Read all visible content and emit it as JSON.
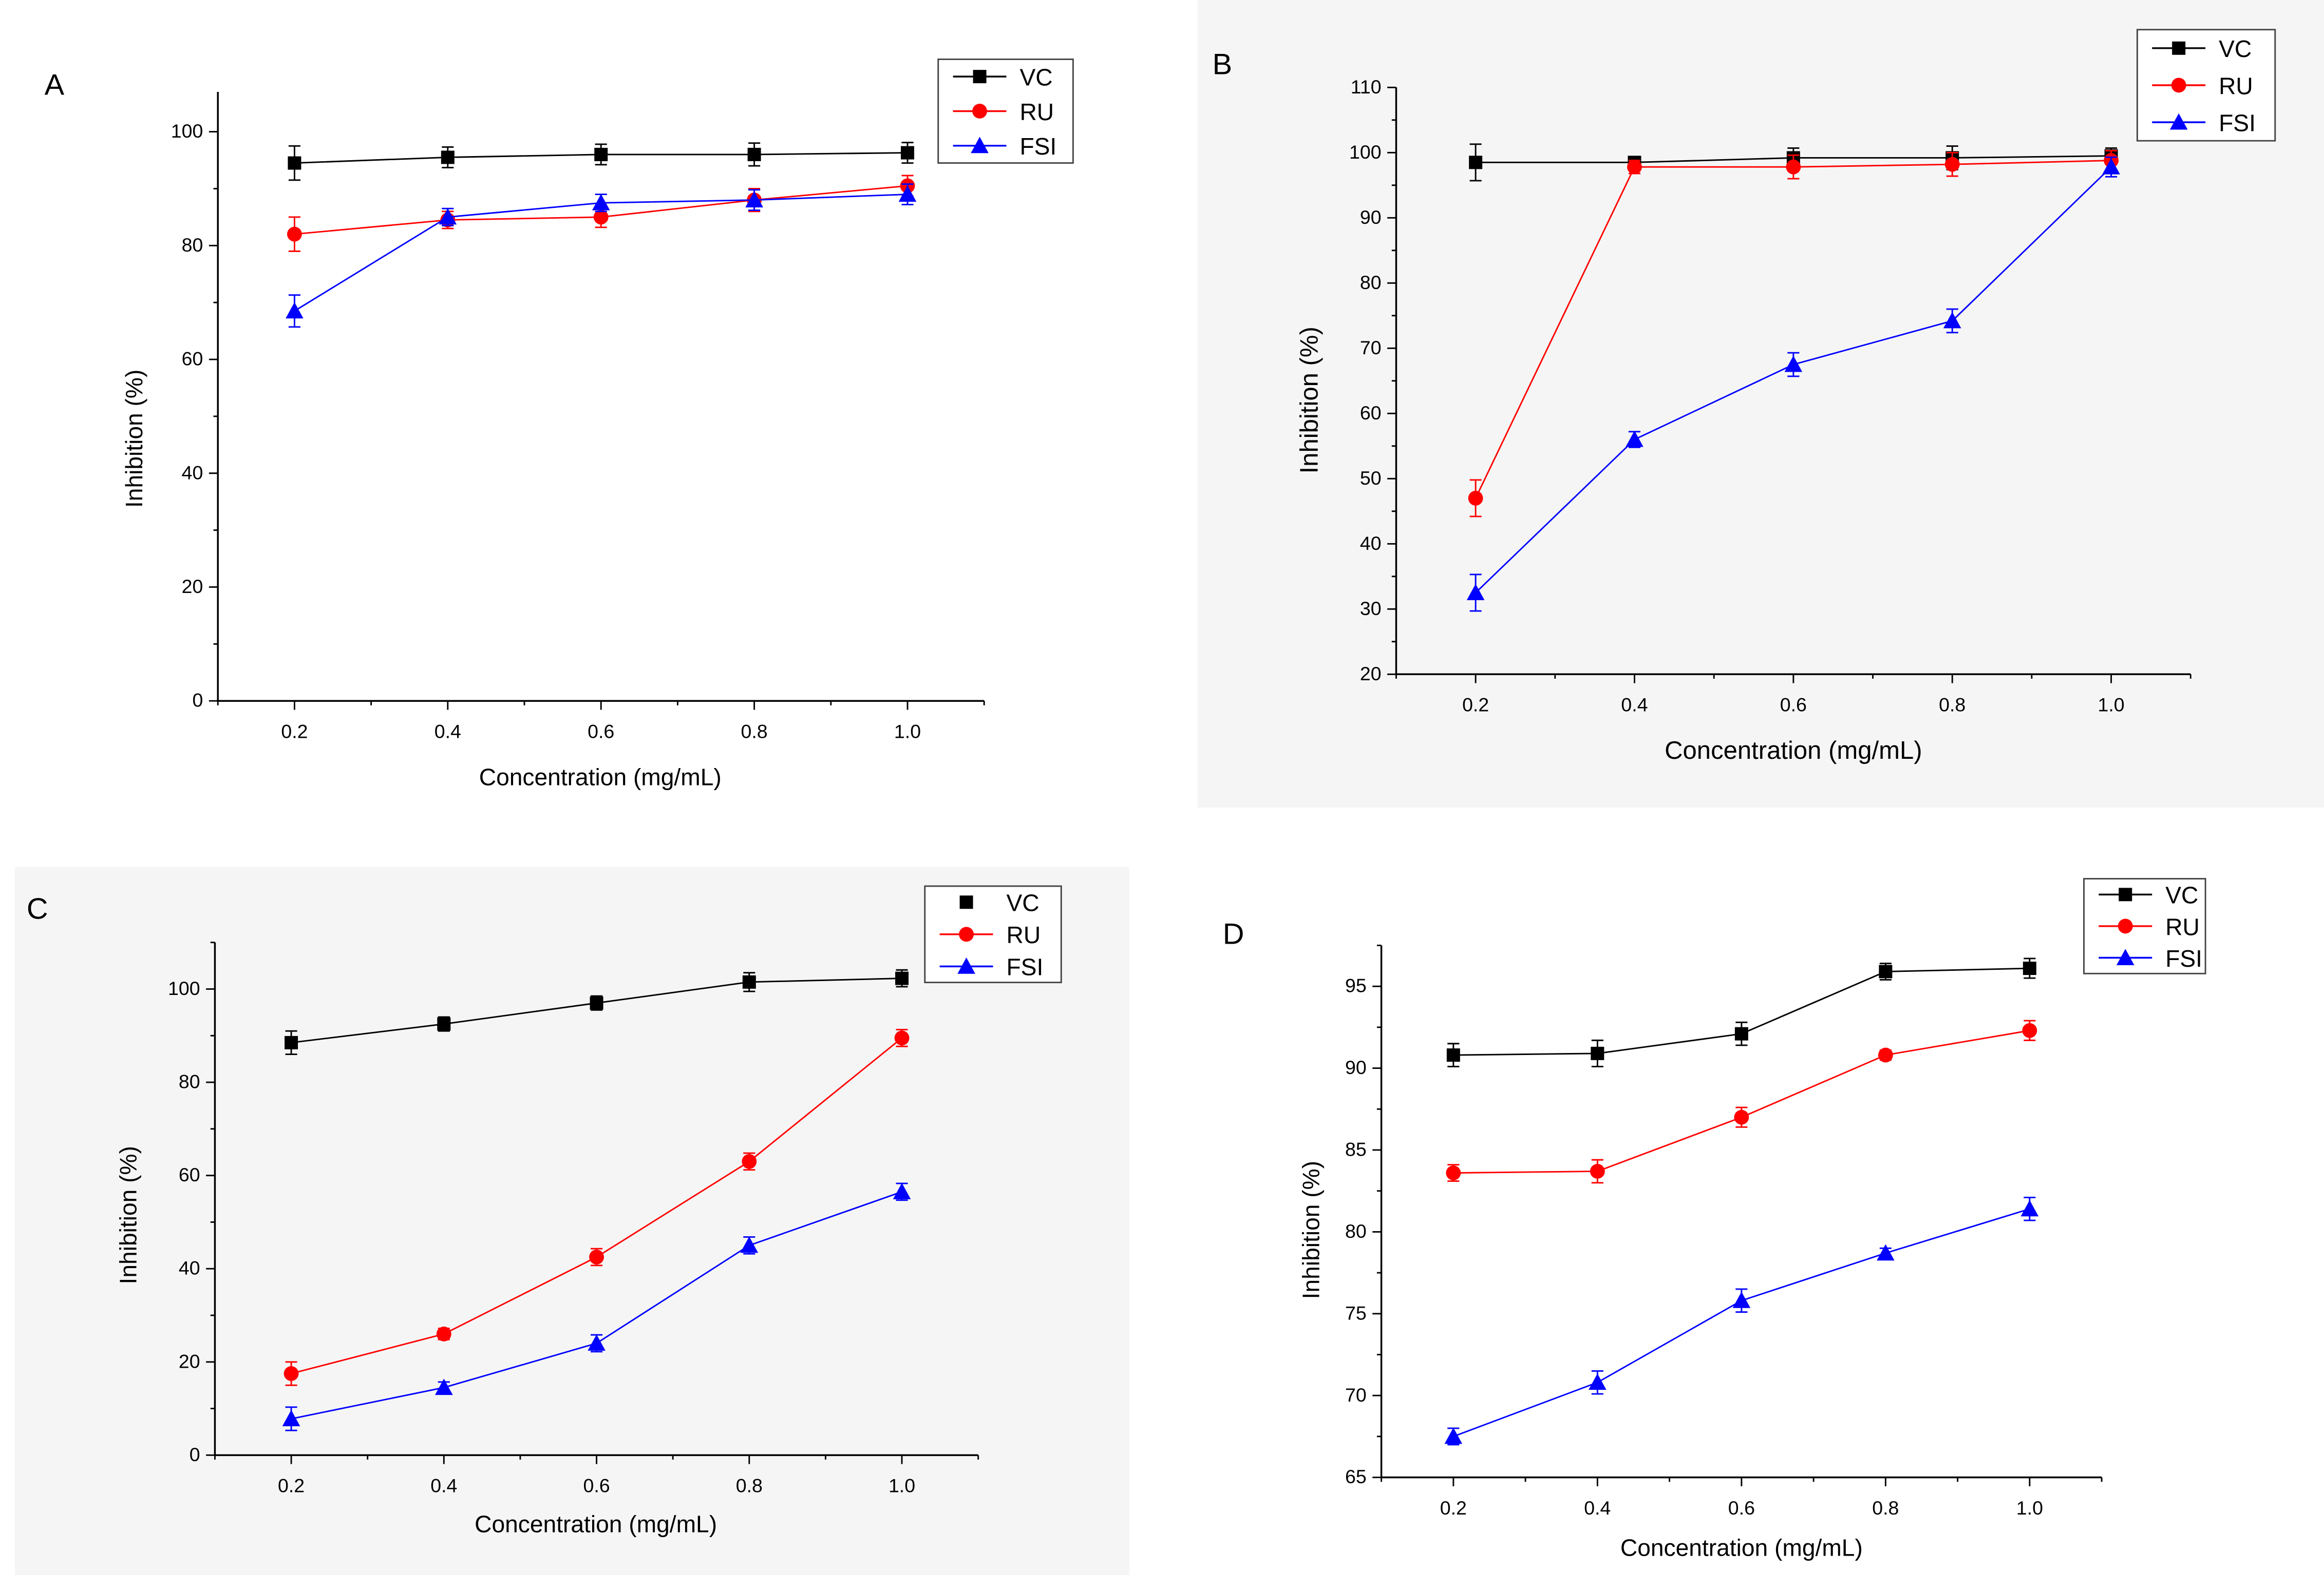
{
  "chart_data": [
    {
      "type": "line",
      "panel_label": "A",
      "xlabel": "Concentration (mg/mL)",
      "ylabel": "Inhibition (%)",
      "x": [
        0.2,
        0.4,
        0.6,
        0.8,
        1.0
      ],
      "xticks": [
        "0.2",
        "0.4",
        "0.6",
        "0.8",
        "1.0"
      ],
      "yticks": [
        0,
        20,
        40,
        60,
        80,
        100
      ],
      "xlim": [
        0.1,
        1.1
      ],
      "ylim": [
        0,
        107
      ],
      "legend": "top-right",
      "series": [
        {
          "name": "VC",
          "color": "#000000",
          "marker": "square",
          "values": [
            94.5,
            95.5,
            96.0,
            96.0,
            96.3
          ],
          "errors": [
            3.0,
            1.8,
            1.8,
            2.0,
            1.8
          ]
        },
        {
          "name": "RU",
          "color": "#ff0000",
          "marker": "circle",
          "values": [
            82.0,
            84.5,
            85.0,
            88.0,
            90.5
          ],
          "errors": [
            3.0,
            1.5,
            1.8,
            2.0,
            1.8
          ]
        },
        {
          "name": "FSI",
          "color": "#0000ff",
          "marker": "triangle",
          "values": [
            68.5,
            85.0,
            87.5,
            88.0,
            89.0
          ],
          "errors": [
            2.8,
            1.5,
            1.5,
            1.8,
            1.8
          ]
        }
      ]
    },
    {
      "type": "line",
      "panel_label": "B",
      "xlabel": "Concentration (mg/mL)",
      "ylabel": "Inhibition (%)",
      "x": [
        0.2,
        0.4,
        0.6,
        0.8,
        1.0
      ],
      "xticks": [
        "0.2",
        "0.4",
        "0.6",
        "0.8",
        "1.0"
      ],
      "yticks": [
        20,
        30,
        40,
        50,
        60,
        70,
        80,
        90,
        100,
        110
      ],
      "xlim": [
        0.1,
        1.1
      ],
      "ylim": [
        20,
        110
      ],
      "legend": "top-right",
      "series": [
        {
          "name": "VC",
          "color": "#000000",
          "marker": "square",
          "values": [
            98.5,
            98.5,
            99.2,
            99.2,
            99.5
          ],
          "errors": [
            2.8,
            0.8,
            1.5,
            1.8,
            1.2
          ]
        },
        {
          "name": "RU",
          "color": "#ff0000",
          "marker": "circle",
          "values": [
            47.0,
            97.8,
            97.8,
            98.2,
            98.8
          ],
          "errors": [
            2.8,
            1.0,
            1.8,
            1.8,
            1.5
          ]
        },
        {
          "name": "FSI",
          "color": "#0000ff",
          "marker": "triangle",
          "values": [
            32.5,
            56.0,
            67.5,
            74.2,
            97.8
          ],
          "errors": [
            2.8,
            1.2,
            1.8,
            1.8,
            1.5
          ]
        }
      ]
    },
    {
      "type": "line",
      "panel_label": "C",
      "xlabel": "Concentration (mg/mL)",
      "ylabel": "Inhibition (%)",
      "x": [
        0.2,
        0.4,
        0.6,
        0.8,
        1.0
      ],
      "xticks": [
        "0.2",
        "0.4",
        "0.6",
        "0.8",
        "1.0"
      ],
      "yticks": [
        0,
        20,
        40,
        60,
        80,
        100
      ],
      "xlim": [
        0.1,
        1.1
      ],
      "ylim": [
        0,
        110
      ],
      "legend": "top-right",
      "series": [
        {
          "name": "VC",
          "color": "#000000",
          "marker": "square",
          "values": [
            88.5,
            92.5,
            97.0,
            101.5,
            102.3
          ],
          "errors": [
            2.5,
            1.5,
            1.5,
            2.0,
            1.8
          ]
        },
        {
          "name": "RU",
          "color": "#ff0000",
          "marker": "circle",
          "values": [
            17.5,
            26.0,
            42.5,
            63.0,
            89.5
          ],
          "errors": [
            2.5,
            1.2,
            1.8,
            1.8,
            1.8
          ]
        },
        {
          "name": "FSI",
          "color": "#0000ff",
          "marker": "triangle",
          "values": [
            7.8,
            14.5,
            24.0,
            45.0,
            56.5
          ],
          "errors": [
            2.5,
            1.2,
            1.8,
            1.8,
            1.8
          ]
        }
      ]
    },
    {
      "type": "line",
      "panel_label": "D",
      "xlabel": "Concentration (mg/mL)",
      "ylabel": "Inhibition (%)",
      "x": [
        0.2,
        0.4,
        0.6,
        0.8,
        1.0
      ],
      "xticks": [
        "0.2",
        "0.4",
        "0.6",
        "0.8",
        "1.0"
      ],
      "yticks": [
        65,
        70,
        75,
        80,
        85,
        90,
        95
      ],
      "xlim": [
        0.1,
        1.1
      ],
      "ylim": [
        65,
        97.5
      ],
      "legend": "top-right",
      "series": [
        {
          "name": "VC",
          "color": "#000000",
          "marker": "square",
          "values": [
            90.8,
            90.9,
            92.1,
            95.9,
            96.1
          ],
          "errors": [
            0.7,
            0.8,
            0.7,
            0.5,
            0.6
          ]
        },
        {
          "name": "RU",
          "color": "#ff0000",
          "marker": "circle",
          "values": [
            83.6,
            83.7,
            87.0,
            90.8,
            92.3
          ],
          "errors": [
            0.5,
            0.7,
            0.6,
            0.3,
            0.6
          ]
        },
        {
          "name": "FSI",
          "color": "#0000ff",
          "marker": "triangle",
          "values": [
            67.5,
            70.8,
            75.8,
            78.7,
            81.4
          ],
          "errors": [
            0.5,
            0.7,
            0.7,
            0.3,
            0.7
          ]
        }
      ]
    }
  ]
}
